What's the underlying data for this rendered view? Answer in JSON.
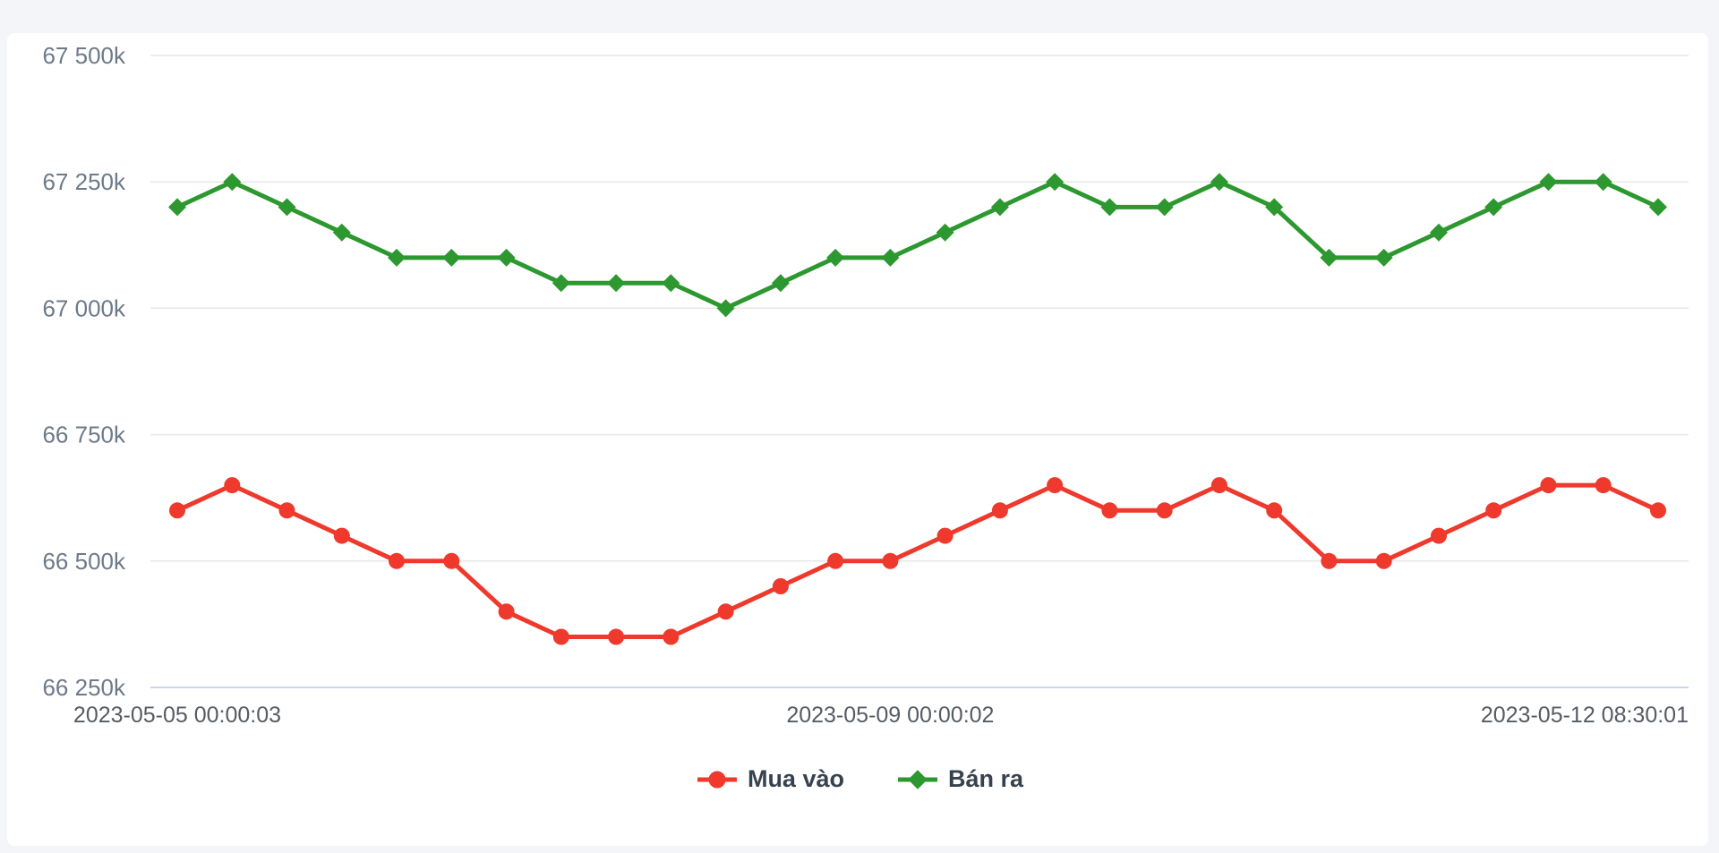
{
  "page": {
    "background_color": "#f3f5f8",
    "panel_background_color": "#ffffff"
  },
  "chart_data": {
    "type": "line",
    "title": "",
    "xlabel": "",
    "ylabel": "",
    "grid": true,
    "legend_position": "bottom-center",
    "ylim": [
      66250,
      67500
    ],
    "num_points": 28,
    "y_ticks": [
      {
        "value": 66250,
        "label": "66 250k"
      },
      {
        "value": 66500,
        "label": "66 500k"
      },
      {
        "value": 66750,
        "label": "66 750k"
      },
      {
        "value": 67000,
        "label": "67 000k"
      },
      {
        "value": 67250,
        "label": "67 250k"
      },
      {
        "value": 67500,
        "label": "67 500k"
      }
    ],
    "x_tick_labels": [
      {
        "label": "2023-05-05 00:00:03",
        "point_index": 0,
        "align": "center"
      },
      {
        "label": "2023-05-09 00:00:02",
        "point_index": 13,
        "align": "center"
      },
      {
        "label": "2023-05-12 08:30:01",
        "point_index": 27,
        "align": "right"
      }
    ],
    "series": [
      {
        "name": "Mua vào",
        "color": "#ee392c",
        "marker": "circle",
        "values": [
          66600,
          66650,
          66600,
          66550,
          66500,
          66500,
          66400,
          66350,
          66350,
          66350,
          66400,
          66450,
          66500,
          66500,
          66550,
          66600,
          66650,
          66600,
          66600,
          66650,
          66600,
          66500,
          66500,
          66550,
          66600,
          66650,
          66650,
          66600
        ]
      },
      {
        "name": "Bán ra",
        "color": "#2d982f",
        "marker": "diamond",
        "values": [
          67200,
          67250,
          67200,
          67150,
          67100,
          67100,
          67100,
          67050,
          67050,
          67050,
          67000,
          67050,
          67100,
          67100,
          67150,
          67200,
          67250,
          67200,
          67200,
          67250,
          67200,
          67100,
          67100,
          67150,
          67200,
          67250,
          67250,
          67200
        ]
      }
    ],
    "axis_colors": {
      "grid": "#e7e7e7",
      "axis_line": "#ccd6eb",
      "y_label": "#6d7a88",
      "x_label": "#565c62",
      "legend_text": "#37424e"
    }
  }
}
